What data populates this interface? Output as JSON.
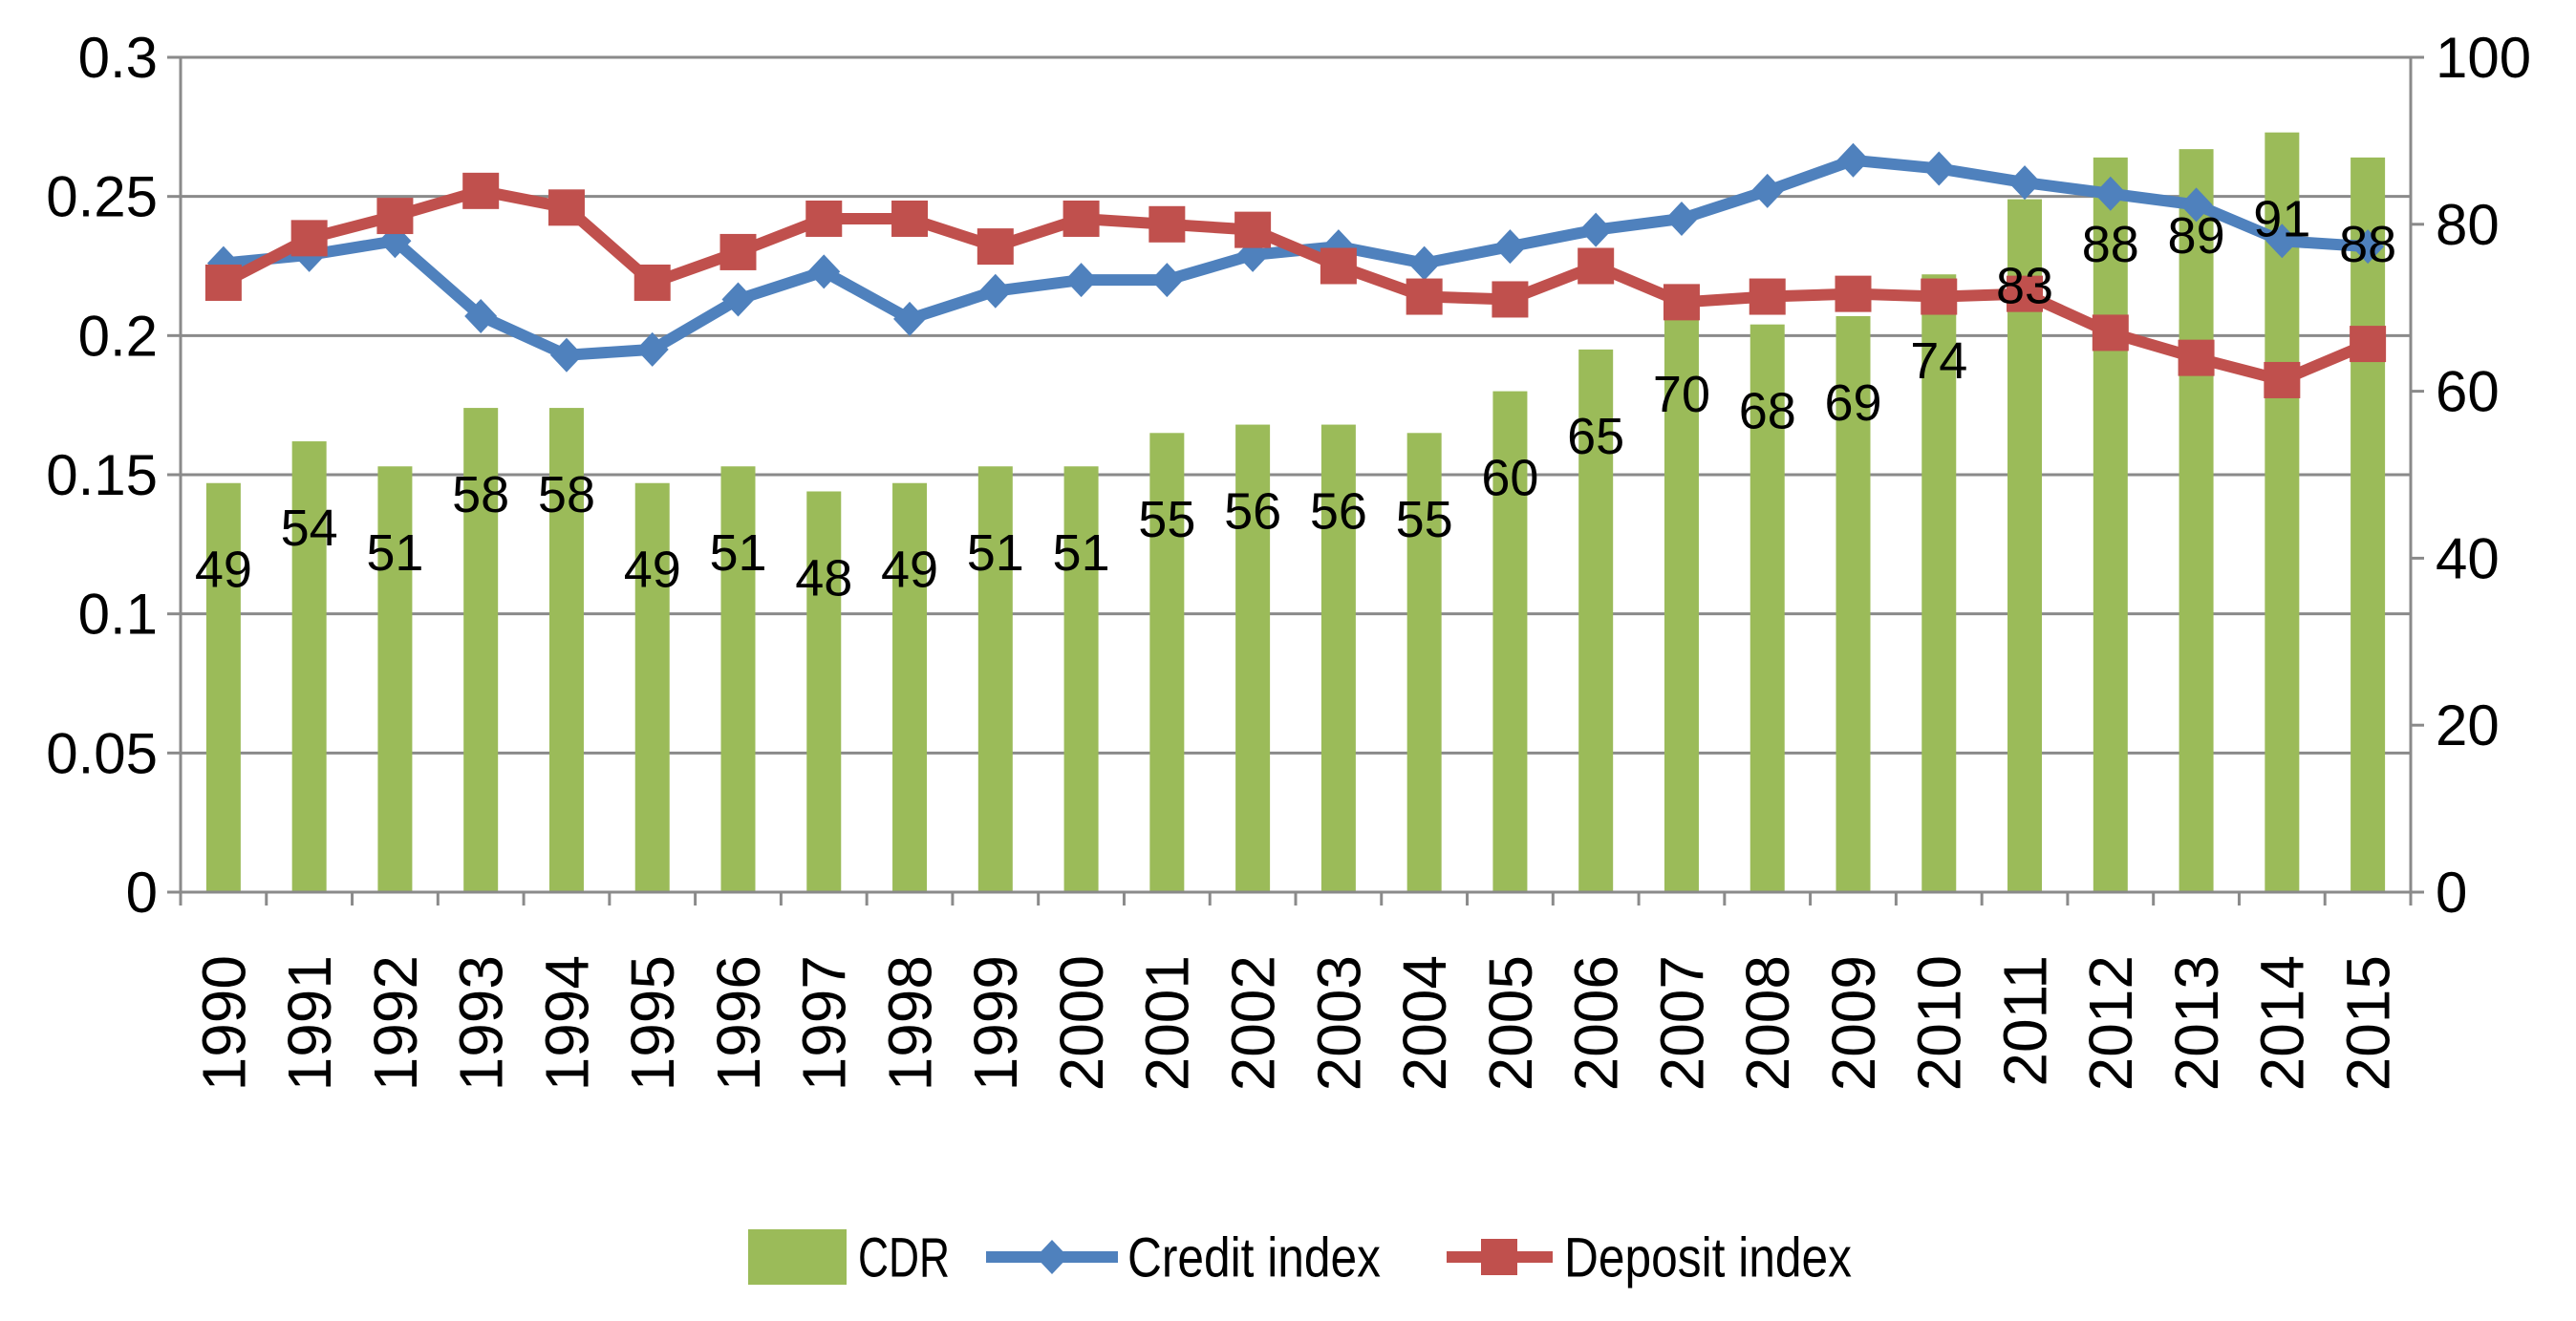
{
  "chart_data": {
    "type": "bar",
    "title": "",
    "xlabel": "",
    "ylabel": "",
    "grid": true,
    "legend": "bottom",
    "categories": [
      "1990",
      "1991",
      "1992",
      "1993",
      "1994",
      "1995",
      "1996",
      "1997",
      "1998",
      "1999",
      "2000",
      "2001",
      "2002",
      "2003",
      "2004",
      "2005",
      "2006",
      "2007",
      "2008",
      "2009",
      "2010",
      "2011",
      "2012",
      "2013",
      "2014",
      "2015"
    ],
    "series": [
      {
        "name": "CDR",
        "type": "bar",
        "axis": "right",
        "color": "#9BBB59",
        "values": [
          49,
          54,
          51,
          58,
          58,
          49,
          51,
          48,
          49,
          51,
          51,
          55,
          56,
          56,
          55,
          60,
          65,
          70,
          68,
          69,
          74,
          83,
          88,
          89,
          91,
          88
        ]
      },
      {
        "name": "Credit index",
        "type": "line",
        "axis": "left",
        "marker": "diamond",
        "color": "#4F81BD",
        "values": [
          0.226,
          0.229,
          0.234,
          0.207,
          0.193,
          0.195,
          0.213,
          0.223,
          0.206,
          0.216,
          0.22,
          0.22,
          0.229,
          0.232,
          0.226,
          0.232,
          0.238,
          0.242,
          0.252,
          0.263,
          0.26,
          0.255,
          0.251,
          0.247,
          0.234,
          0.232
        ]
      },
      {
        "name": "Deposit index",
        "type": "line",
        "axis": "left",
        "marker": "square",
        "color": "#C0504D",
        "values": [
          0.219,
          0.235,
          0.243,
          0.252,
          0.246,
          0.219,
          0.23,
          0.242,
          0.242,
          0.232,
          0.242,
          0.24,
          0.238,
          0.225,
          0.214,
          0.213,
          0.225,
          0.212,
          0.214,
          0.215,
          0.214,
          0.215,
          0.201,
          0.192,
          0.184,
          0.197
        ]
      }
    ],
    "y_left": {
      "ylim": [
        0,
        0.3
      ],
      "ticks": [
        "0",
        "0.05",
        "0.1",
        "0.15",
        "0.2",
        "0.25",
        "0.3"
      ]
    },
    "y_right": {
      "ylim": [
        0,
        100
      ],
      "ticks": [
        "0",
        "20",
        "40",
        "60",
        "80",
        "100"
      ]
    }
  }
}
